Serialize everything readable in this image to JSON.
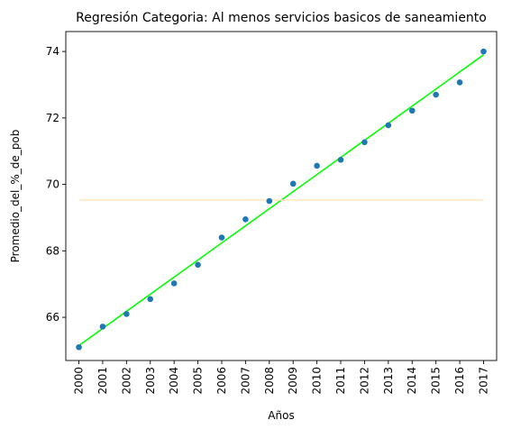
{
  "chart_data": {
    "type": "scatter",
    "title": "Regresión Categoria: Al menos servicios basicos de saneamiento",
    "xlabel": "Años",
    "ylabel": "Promedio_del_%_de_pob",
    "x": [
      2000,
      2001,
      2002,
      2003,
      2004,
      2005,
      2006,
      2007,
      2008,
      2009,
      2010,
      2011,
      2012,
      2013,
      2014,
      2015,
      2016,
      2017
    ],
    "x_tick_labels": [
      "2000",
      "2001",
      "2002",
      "2003",
      "2004",
      "2005",
      "2006",
      "2007",
      "2008",
      "2009",
      "2010",
      "2011",
      "2012",
      "2013",
      "2014",
      "2015",
      "2016",
      "2017"
    ],
    "y_ticks": [
      66,
      68,
      70,
      72,
      74
    ],
    "y_tick_labels": [
      "66",
      "68",
      "70",
      "72",
      "74"
    ],
    "xlim": [
      1999.45,
      2017.55
    ],
    "ylim": [
      64.7,
      74.6
    ],
    "series": [
      {
        "name": "Promedio_del_%_de_pob",
        "type": "scatter",
        "color": "#1f77b4",
        "values": [
          65.1,
          65.72,
          66.1,
          66.55,
          67.02,
          67.58,
          68.4,
          68.95,
          69.5,
          70.02,
          70.56,
          70.74,
          71.27,
          71.78,
          72.22,
          72.7,
          73.07,
          74.0
        ]
      },
      {
        "name": "Regresión",
        "type": "line",
        "color": "#00ff00",
        "x": [
          2000,
          2017
        ],
        "values": [
          65.15,
          73.9
        ]
      },
      {
        "name": "Promedio",
        "type": "line",
        "color": "#ffe4b5",
        "x": [
          2000,
          2017
        ],
        "values": [
          69.53,
          69.53
        ]
      }
    ],
    "grid": false,
    "legend": "none"
  }
}
